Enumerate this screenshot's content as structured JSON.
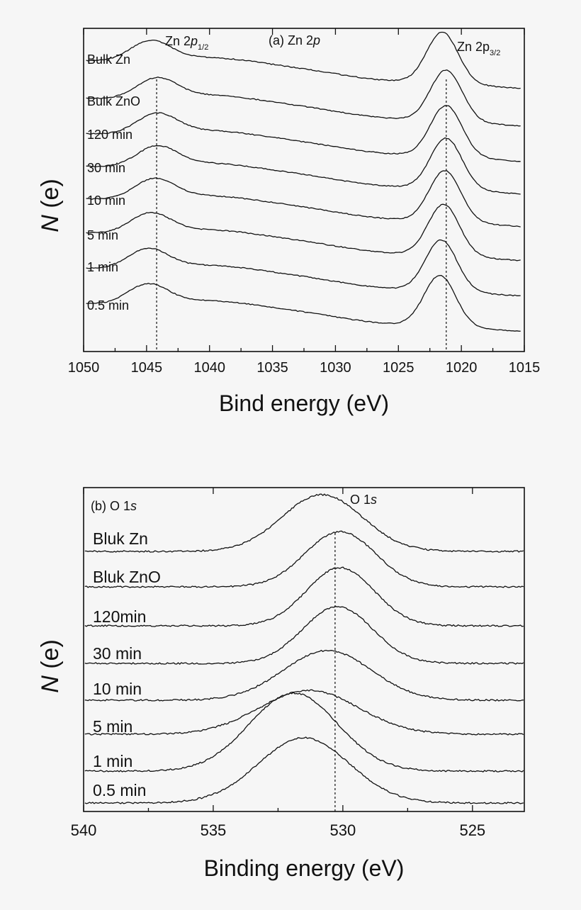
{
  "chart_data": [
    {
      "type": "line",
      "panel": "(a) Zn 2p",
      "panel_title": "(a) Zn 2",
      "panel_title_ital": "p",
      "xlabel": "Bind energy (eV)",
      "ylabel_ital": "N",
      "ylabel_rest": " (e)",
      "xlim": [
        1050,
        1015
      ],
      "xticks": [
        1050,
        1045,
        1040,
        1035,
        1030,
        1025,
        1020,
        1015
      ],
      "annotations": [
        {
          "text": "Zn 2",
          "ital": "p",
          "sub": "1/2",
          "x": 1044.2
        },
        {
          "text": "Zn 2p",
          "ital": "",
          "sub": "3/2",
          "x": 1021.2
        }
      ],
      "dashed_guides": [
        1044.2,
        1021.2
      ],
      "series": [
        {
          "name": "Bulk Zn",
          "p1": 1044.7,
          "p2": 1021.5
        },
        {
          "name": "Bulk ZnO",
          "p1": 1044.2,
          "p2": 1021.2
        },
        {
          "name": "120 min",
          "p1": 1044.2,
          "p2": 1021.2
        },
        {
          "name": "30 min",
          "p1": 1044.2,
          "p2": 1021.2
        },
        {
          "name": "10 min",
          "p1": 1044.4,
          "p2": 1021.3
        },
        {
          "name": "5 min",
          "p1": 1044.7,
          "p2": 1021.4
        },
        {
          "name": "1 min",
          "p1": 1044.9,
          "p2": 1021.6
        },
        {
          "name": "0.5 min",
          "p1": 1044.9,
          "p2": 1021.7
        }
      ]
    },
    {
      "type": "line",
      "panel": "(b) O 1s",
      "panel_title": "(b) O 1",
      "panel_title_ital": "s",
      "xlabel": "Binding energy (eV)",
      "ylabel_ital": "N",
      "ylabel_rest": " (e)",
      "xlim": [
        540,
        523
      ],
      "xticks": [
        540,
        535,
        530,
        525
      ],
      "annotations": [
        {
          "text": "O 1",
          "ital": "s",
          "sub": "",
          "x": 529.8
        }
      ],
      "dashed_guides": [
        530.3
      ],
      "series": [
        {
          "name": "Bluk Zn",
          "peak": 530.8
        },
        {
          "name": "Bluk ZnO",
          "peak": 530.1
        },
        {
          "name": "120min",
          "peak": 530.1
        },
        {
          "name": "30 min",
          "peak": 530.2
        },
        {
          "name": "10 min",
          "peak": 530.6
        },
        {
          "name": "5 min",
          "peak": 531.3
        },
        {
          "name": "1 min",
          "peak": 531.9
        },
        {
          "name": "0.5 min",
          "peak": 531.5
        }
      ]
    }
  ]
}
